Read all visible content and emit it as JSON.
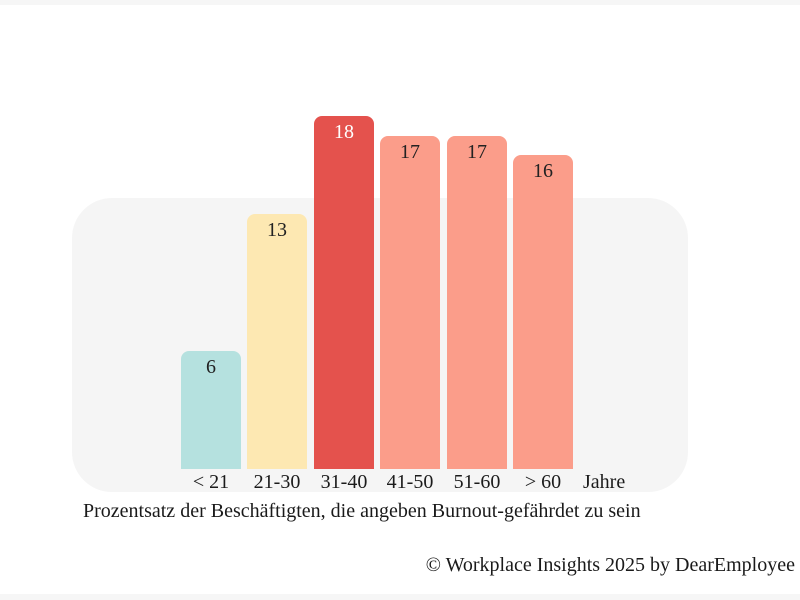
{
  "page": {
    "background": "#ffffff",
    "edge_strip_color": "#f6f6f6",
    "panel_background": "#f5f5f5",
    "text_color": "#1a1a1a"
  },
  "chart_data": {
    "type": "bar",
    "title": "Prozentsatz der Beschäftigten, die angeben Burnout-gefährdet zu sein",
    "categories": [
      "< 21",
      "21-30",
      "31-40",
      "41-50",
      "51-60",
      "> 60"
    ],
    "values": [
      6,
      13,
      18,
      17,
      17,
      16
    ],
    "bar_colors": [
      "#b5e1df",
      "#fde8b2",
      "#e4524d",
      "#fb9d8a",
      "#fb9d8a",
      "#fb9d8a"
    ],
    "value_label_colors": [
      "#222222",
      "#222222",
      "#ffffff",
      "#222222",
      "#222222",
      "#222222"
    ],
    "xlabel": "Jahre",
    "ylabel": "",
    "ylim": [
      0,
      18
    ],
    "grid": false,
    "legend": "none",
    "highlight_category": "31-40",
    "value_labels_shown": true
  },
  "footer": {
    "credit": "© Workplace Insights 2025 by DearEmployee"
  }
}
